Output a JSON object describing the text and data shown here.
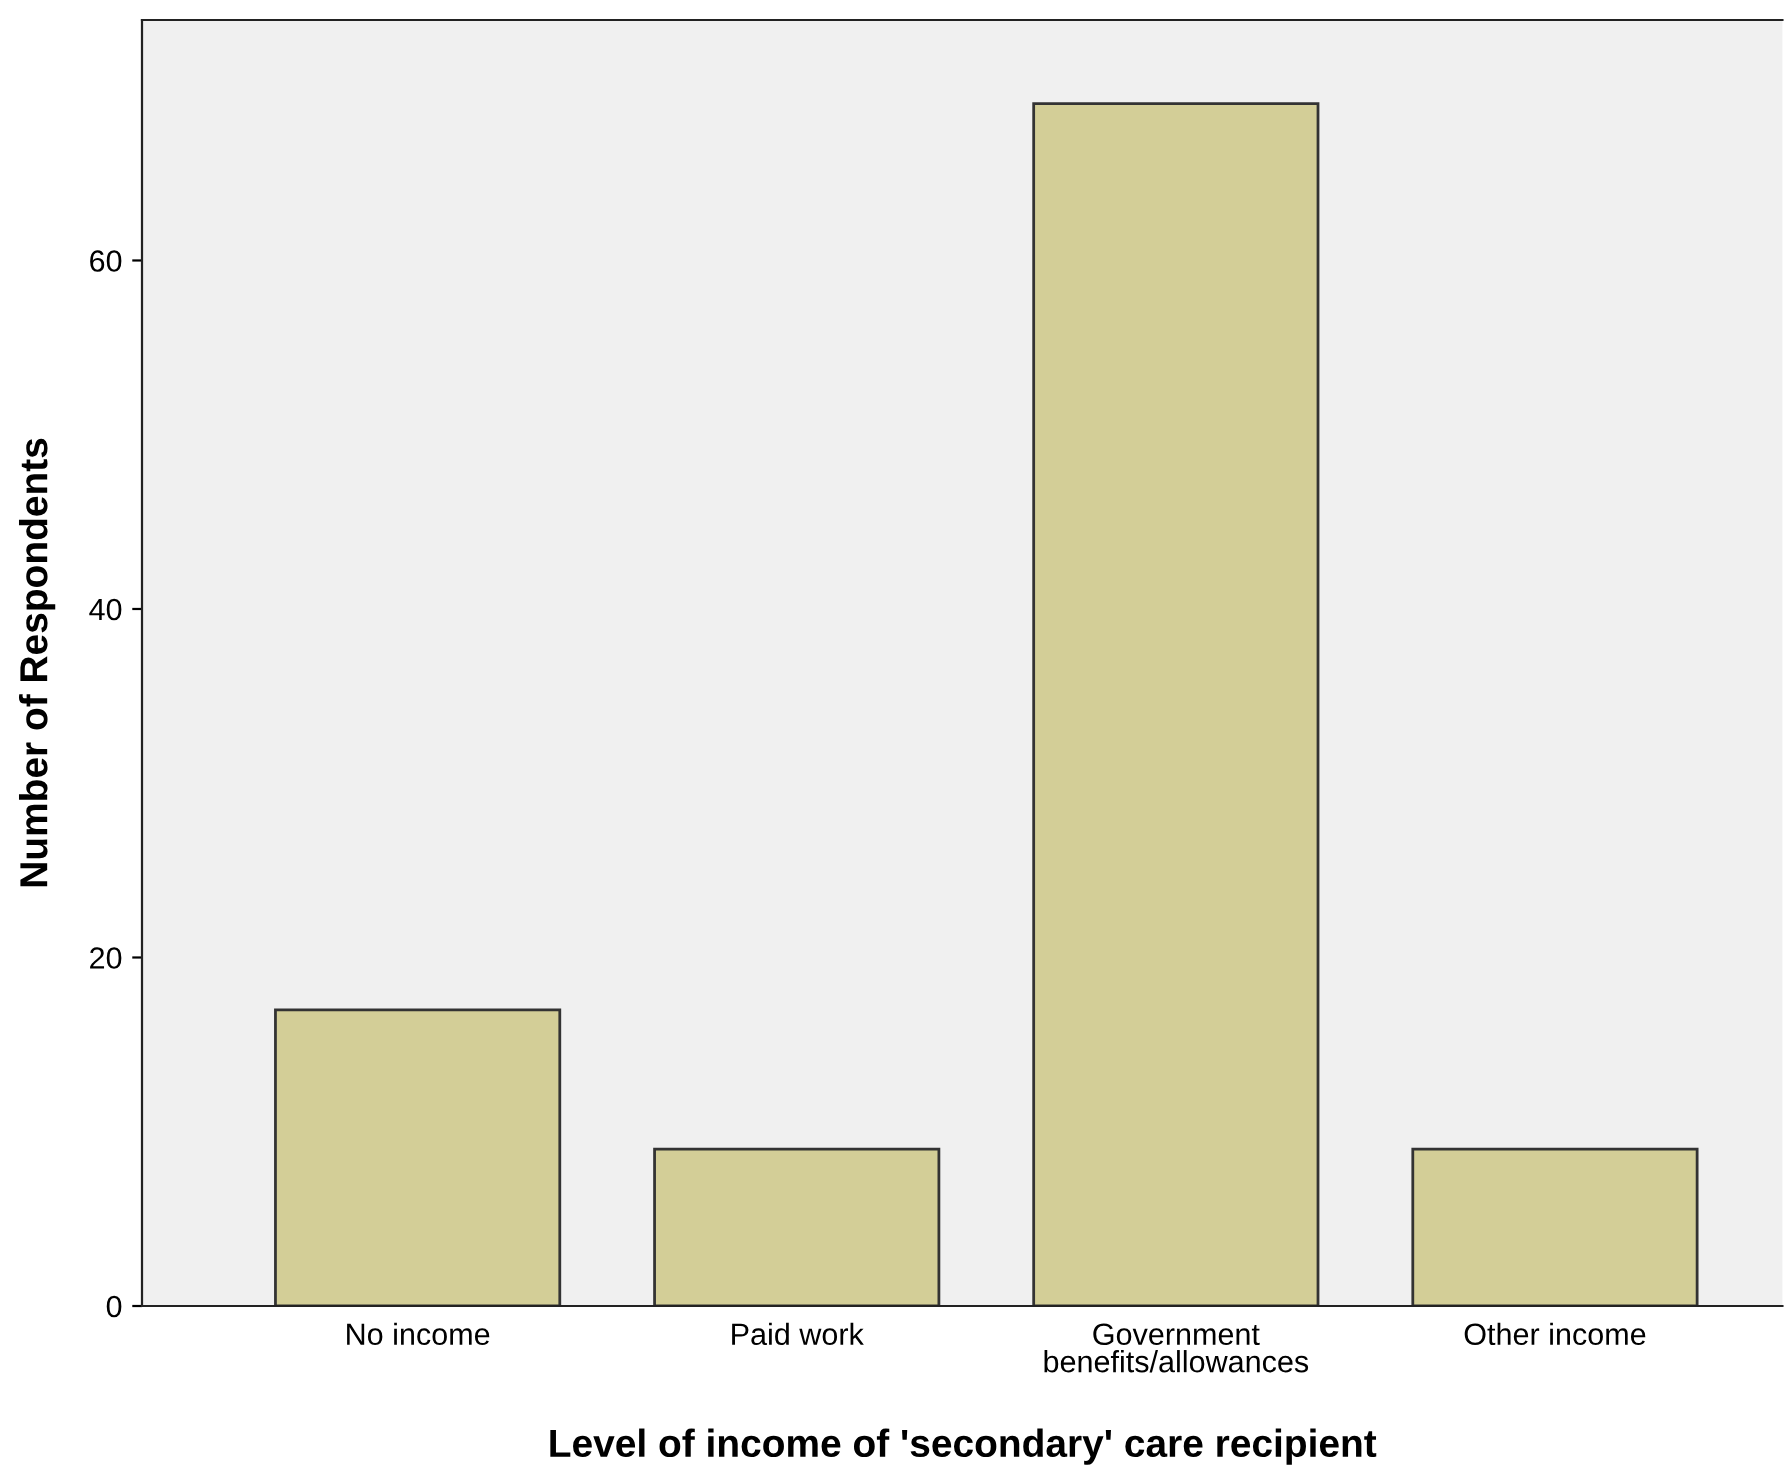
{
  "chart_data": {
    "type": "bar",
    "xlabel": "Level of income of 'secondary' care recipient",
    "ylabel": "Number of Respondents",
    "categories": [
      "No income",
      "Paid work",
      "Government\nbenefits/allowances",
      "Other income"
    ],
    "values": [
      17,
      9,
      69,
      9
    ],
    "color": "#d3ce97",
    "ylim": [
      0,
      73.8
    ],
    "yticks": [
      0,
      20,
      40,
      60
    ],
    "grid": false,
    "legend": false
  }
}
